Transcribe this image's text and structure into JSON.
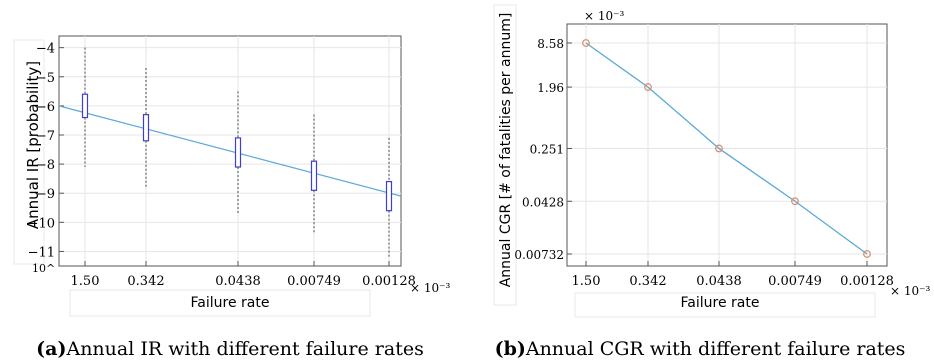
{
  "chart_data": [
    {
      "type": "box",
      "caption_letter": "(a)",
      "caption_text": "Annual IR with different failure rates",
      "xlabel": "Failure rate",
      "ylabel": "Annual IR [probability]",
      "x_multiplier": "× 10⁻³",
      "y_prefix": "10^",
      "categories": [
        "1.50",
        "0.342",
        "0.0438",
        "0.00749",
        "0.00128"
      ],
      "ylim": [
        -11.5,
        -3.6
      ],
      "yticks": [
        -4,
        -5,
        -6,
        -7,
        -8,
        -9,
        -10,
        -11
      ],
      "grid": true,
      "boxes": [
        {
          "category": "1.50",
          "q1": -6.4,
          "median": -6.0,
          "q3": -5.6,
          "whisker_low": -8.1,
          "whisker_high": -4.0
        },
        {
          "category": "0.342",
          "q1": -7.2,
          "median": -6.7,
          "q3": -6.3,
          "whisker_low": -8.8,
          "whisker_high": -4.7
        },
        {
          "category": "0.0438",
          "q1": -8.1,
          "median": -7.6,
          "q3": -7.1,
          "whisker_low": -9.7,
          "whisker_high": -5.5
        },
        {
          "category": "0.00749",
          "q1": -8.9,
          "median": -8.4,
          "q3": -7.9,
          "whisker_low": -10.4,
          "whisker_high": -6.3
        },
        {
          "category": "0.00128",
          "q1": -9.6,
          "median": -9.1,
          "q3": -8.6,
          "whisker_low": -11.2,
          "whisker_high": -7.1
        }
      ],
      "trend_line": [
        -6.0,
        -9.1
      ],
      "colors": {
        "box": "#3f3fcf",
        "line": "#5aa9d6",
        "whisker": "#444444"
      }
    },
    {
      "type": "line",
      "caption_letter": "(b)",
      "caption_text": "Annual CGR with different failure rates",
      "xlabel": "Failure rate",
      "ylabel": "Annual CGR  [# of fatalities per annum]",
      "x_multiplier": "× 10⁻³",
      "y_multiplier": "× 10⁻³",
      "categories": [
        "1.50",
        "0.342",
        "0.0438",
        "0.00749",
        "0.00128"
      ],
      "yticks": [
        "8.58",
        "1.96",
        "0.251",
        "0.0428",
        "0.00732"
      ],
      "log_scale_y": true,
      "grid": true,
      "series": [
        {
          "values": [
            8.58,
            1.96,
            0.251,
            0.0428,
            0.00732
          ]
        }
      ],
      "colors": {
        "line": "#5aa9d6",
        "marker": "#d98c6a"
      }
    }
  ]
}
